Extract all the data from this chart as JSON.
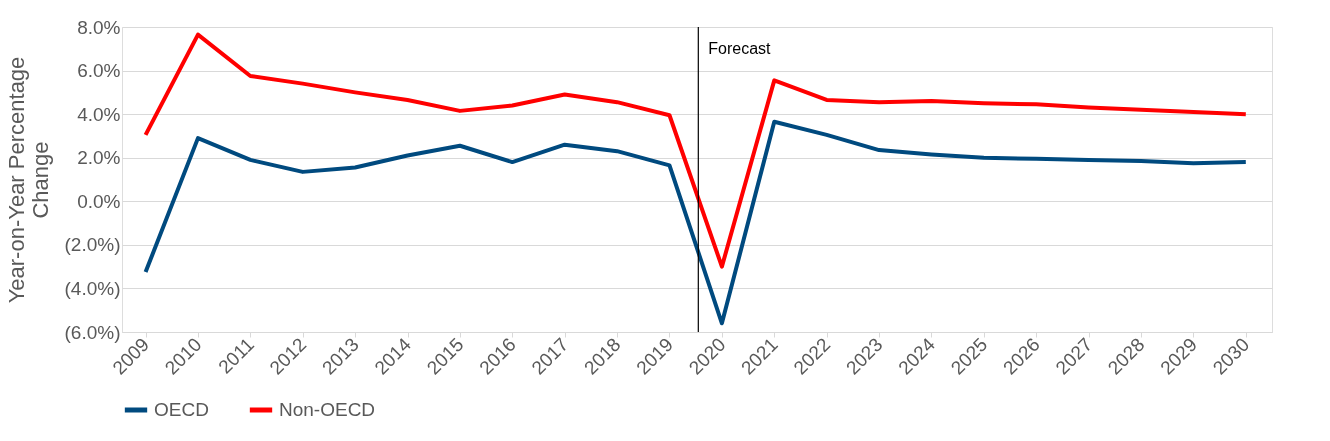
{
  "chart_data": {
    "type": "line",
    "ylabel": "Year-on-Year Percentage Change",
    "x": [
      2009,
      2010,
      2011,
      2012,
      2013,
      2014,
      2015,
      2016,
      2017,
      2018,
      2019,
      2020,
      2021,
      2022,
      2023,
      2024,
      2025,
      2026,
      2027,
      2028,
      2029,
      2030
    ],
    "xlim": [
      2008.55,
      2030.5
    ],
    "xticks": [
      2009,
      2010,
      2011,
      2012,
      2013,
      2014,
      2015,
      2016,
      2017,
      2018,
      2019,
      2020,
      2021,
      2022,
      2023,
      2024,
      2025,
      2026,
      2027,
      2028,
      2029,
      2030
    ],
    "ylim": [
      -6,
      8
    ],
    "yticks": [
      {
        "value": -6,
        "label": "(6.0%)"
      },
      {
        "value": -4,
        "label": "(4.0%)"
      },
      {
        "value": -2,
        "label": "(2.0%)"
      },
      {
        "value": 0,
        "label": "0.0%"
      },
      {
        "value": 2,
        "label": "2.0%"
      },
      {
        "value": 4,
        "label": "4.0%"
      },
      {
        "value": 6,
        "label": "6.0%"
      },
      {
        "value": 8,
        "label": "8.0%"
      }
    ],
    "series": [
      {
        "name": "OECD",
        "color": "#004a7f",
        "values": [
          -3.25,
          2.9,
          1.9,
          1.35,
          1.55,
          2.1,
          2.55,
          1.8,
          2.6,
          2.3,
          1.65,
          -5.6,
          3.65,
          3.05,
          2.35,
          2.15,
          2.0,
          1.95,
          1.9,
          1.85,
          1.75,
          1.8
        ]
      },
      {
        "name": "Non-OECD",
        "color": "#ff0000",
        "values": [
          3.05,
          7.65,
          5.75,
          5.4,
          5.0,
          4.65,
          4.15,
          4.4,
          4.9,
          4.55,
          3.95,
          -3.0,
          5.55,
          4.65,
          4.55,
          4.6,
          4.5,
          4.45,
          4.3,
          4.2,
          4.1,
          4.0
        ]
      }
    ],
    "ref_lines": [
      {
        "axis": "x",
        "value": 2019.55,
        "label": "Forecast",
        "color": "#000000"
      }
    ],
    "grid": "y",
    "legend": "bottom",
    "marker": "none",
    "line_style": "solid"
  }
}
